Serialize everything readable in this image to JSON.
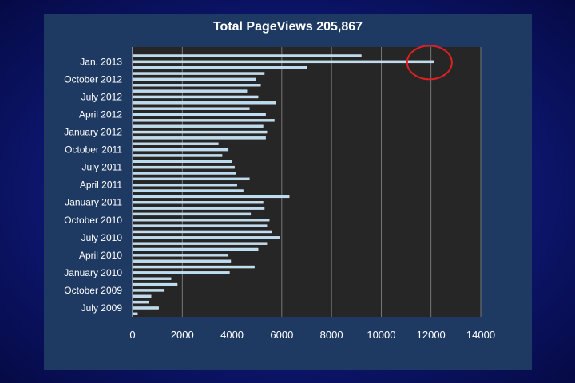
{
  "chart_data": {
    "type": "bar",
    "orientation": "horizontal",
    "title": "Total PageViews  205,867",
    "xlabel": "",
    "ylabel": "",
    "xlim": [
      0,
      14000
    ],
    "x_ticks": [
      "0",
      "2000",
      "4000",
      "6000",
      "8000",
      "10000",
      "12000",
      "14000"
    ],
    "grid": "vertical",
    "legend": "none",
    "category_labels_shown": [
      "July 2009",
      "October 2009",
      "January 2010",
      "April 2010",
      "July 2010",
      "October 2010",
      "January 2011",
      "April 2011",
      "July 2011",
      "October 2011",
      "January 2012",
      "April 2012",
      "July 2012",
      "October 2012",
      "Jan. 2013"
    ],
    "categories": [
      "June 2009",
      "July 2009",
      "August 2009",
      "September 2009",
      "October 2009",
      "November 2009",
      "December 2009",
      "January 2010",
      "February 2010",
      "March 2010",
      "April 2010",
      "May 2010",
      "June 2010",
      "July 2010",
      "August 2010",
      "September 2010",
      "October 2010",
      "November 2010",
      "December 2010",
      "January 2011",
      "February 2011",
      "March 2011",
      "April 2011",
      "May 2011",
      "June 2011",
      "July 2011",
      "August 2011",
      "September 2011",
      "October 2011",
      "November 2011",
      "December 2011",
      "January 2012",
      "February 2012",
      "March 2012",
      "April 2012",
      "May 2012",
      "June 2012",
      "July 2012",
      "August 2012",
      "September 2012",
      "October 2012",
      "November 2012",
      "December 2012",
      "Jan. 2013",
      "February 2013",
      "March 2013"
    ],
    "values": [
      200,
      1050,
      650,
      750,
      1250,
      1800,
      1550,
      3900,
      4900,
      3950,
      3850,
      5050,
      5400,
      5900,
      5600,
      5400,
      5500,
      4750,
      5300,
      5250,
      6300,
      4450,
      4200,
      4700,
      4150,
      4100,
      4000,
      3600,
      3850,
      3450,
      5350,
      5400,
      5250,
      5700,
      5350,
      4700,
      5750,
      5050,
      4600,
      5150,
      4950,
      5300,
      7000,
      12100,
      9200,
      0
    ],
    "bar_color": "#b9dcf2",
    "plot_background": "#262626",
    "highlight": {
      "shape": "circle",
      "color": "#e02020",
      "target_category": "Jan. 2013"
    }
  }
}
